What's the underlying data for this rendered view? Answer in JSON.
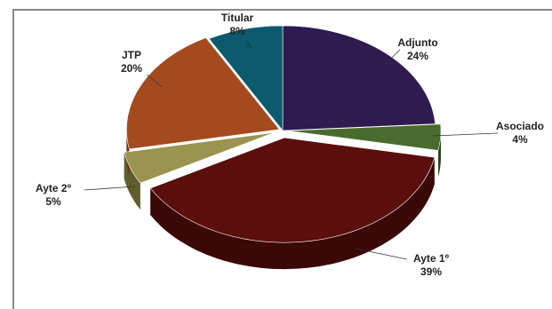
{
  "chart_data": {
    "type": "pie",
    "style": "3d-exploded",
    "slices": [
      {
        "label": "Adjunto",
        "value": 24,
        "value_label": "24%",
        "color": "#2f1b4f",
        "side": "#1c1030"
      },
      {
        "label": "Asociado",
        "value": 4,
        "value_label": "4%",
        "color": "#4a6b2e",
        "side": "#2c4119"
      },
      {
        "label": "Ayte 1º",
        "value": 39,
        "value_label": "39%",
        "color": "#5a0f0c",
        "side": "#3a0806"
      },
      {
        "label": "Ayte 2º",
        "value": 5,
        "value_label": "5%",
        "color": "#9a9450",
        "side": "#615d2e"
      },
      {
        "label": "JTP",
        "value": 20,
        "value_label": "20%",
        "color": "#a54a1f",
        "side": "#6a2d11"
      },
      {
        "label": "Titular",
        "value": 8,
        "value_label": "8%",
        "color": "#0b5a6e",
        "side": "#063745"
      }
    ],
    "start_angle_deg": -90,
    "direction": "clockwise"
  }
}
